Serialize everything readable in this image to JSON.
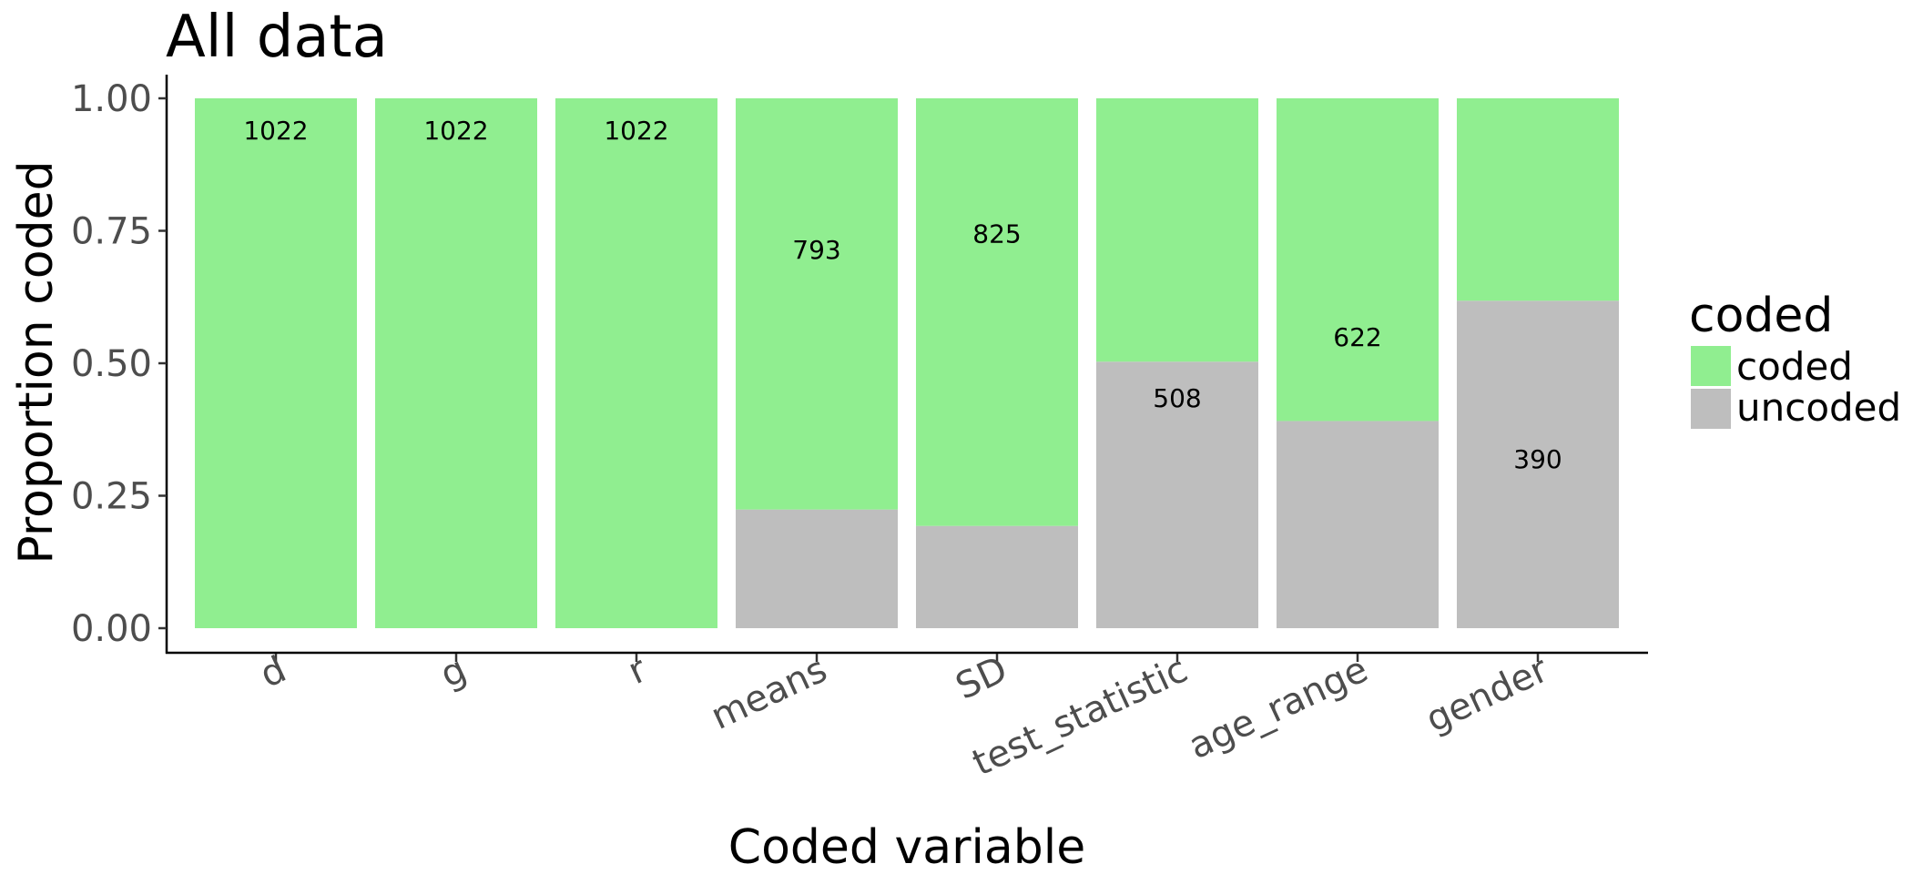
{
  "chart_data": {
    "type": "bar",
    "stacked": true,
    "title": "All data",
    "xlabel": "Coded variable",
    "ylabel": "Proportion coded",
    "ylim": [
      0,
      1
    ],
    "yticks": [
      "0.00",
      "0.25",
      "0.50",
      "0.75",
      "1.00"
    ],
    "categories": [
      "d",
      "g",
      "r",
      "means",
      "SD",
      "test_statistic",
      "age_range",
      "gender"
    ],
    "series": [
      {
        "name": "coded",
        "color": "#90ee90",
        "values": [
          1.0,
          1.0,
          1.0,
          0.776,
          0.807,
          0.497,
          0.609,
          0.382
        ]
      },
      {
        "name": "uncoded",
        "color": "#bebebe",
        "values": [
          0.0,
          0.0,
          0.0,
          0.224,
          0.193,
          0.503,
          0.391,
          0.618
        ]
      }
    ],
    "labels": [
      {
        "category": "d",
        "text": "1022",
        "y": 0.94
      },
      {
        "category": "g",
        "text": "1022",
        "y": 0.94
      },
      {
        "category": "r",
        "text": "1022",
        "y": 0.94
      },
      {
        "category": "means",
        "text": "793",
        "y": 0.715
      },
      {
        "category": "SD",
        "text": "825",
        "y": 0.745
      },
      {
        "category": "test_statistic",
        "text": "508",
        "y": 0.435
      },
      {
        "category": "age_range",
        "text": "622",
        "y": 0.55
      },
      {
        "category": "gender",
        "text": "390",
        "y": 0.32
      }
    ],
    "legend": {
      "title": "coded",
      "position": "right"
    },
    "grid": false
  }
}
